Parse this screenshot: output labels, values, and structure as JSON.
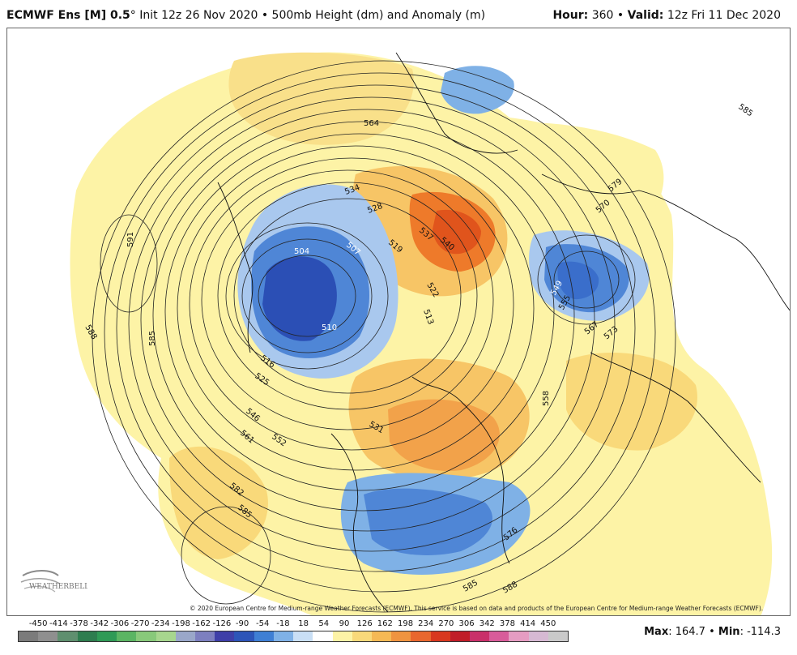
{
  "header": {
    "model": "ECMWF Ens [M] 0.5",
    "degree": "°",
    "init": "Init 12z 26 Nov 2020",
    "bullet": "•",
    "field": "500mb Height (dm) and Anomaly (m)",
    "hour_label": "Hour:",
    "hour_value": "360",
    "valid_label": "Valid:",
    "valid_value": "12z Fri 11 Dec 2020"
  },
  "map": {
    "contour_labels": [
      {
        "text": "564"
      },
      {
        "text": "585"
      },
      {
        "text": "579"
      },
      {
        "text": "570"
      },
      {
        "text": "534"
      },
      {
        "text": "528"
      },
      {
        "text": "537"
      },
      {
        "text": "540"
      },
      {
        "text": "519"
      },
      {
        "text": "522"
      },
      {
        "text": "504"
      },
      {
        "text": "507"
      },
      {
        "text": "510"
      },
      {
        "text": "516"
      },
      {
        "text": "525"
      },
      {
        "text": "546"
      },
      {
        "text": "561"
      },
      {
        "text": "552"
      },
      {
        "text": "582"
      },
      {
        "text": "585"
      },
      {
        "text": "591"
      },
      {
        "text": "588"
      },
      {
        "text": "585"
      },
      {
        "text": "531"
      },
      {
        "text": "558"
      },
      {
        "text": "567"
      },
      {
        "text": "573"
      },
      {
        "text": "549"
      },
      {
        "text": "555"
      },
      {
        "text": "576"
      },
      {
        "text": "585"
      },
      {
        "text": "588"
      },
      {
        "text": "513"
      }
    ],
    "anomaly_colors": {
      "strong_negative": "#2b4fb5",
      "negative": "#4f86d6",
      "weak_negative": "#a9c8ee",
      "weak_positive": "#fdf3a6",
      "positive": "#f7c566",
      "strong_positive": "#ee7a2a",
      "very_strong_positive": "#e0541c"
    }
  },
  "copyright": "© 2020 European Centre for Medium-range Weather Forecasts (ECMWF). This service is based on data and products of the European Centre for Medium-range Weather Forecasts (ECMWF).",
  "colorbar": {
    "labels": [
      "-450",
      "-414",
      "-378",
      "-342",
      "-306",
      "-270",
      "-234",
      "-198",
      "-162",
      "-126",
      "-90",
      "-54",
      "-18",
      "18",
      "54",
      "90",
      "126",
      "162",
      "198",
      "234",
      "270",
      "306",
      "342",
      "378",
      "414",
      "450"
    ],
    "colors": [
      "#7b7b7b",
      "#8f8f8f",
      "#5f8f6f",
      "#2e7d4f",
      "#2f9a56",
      "#5bb563",
      "#88c97a",
      "#a7d68e",
      "#9aa7c9",
      "#7d7fbf",
      "#3f3fa8",
      "#2d55b8",
      "#3f7fd4",
      "#7fb1e6",
      "#c9dff5",
      "#ffffff",
      "#fdf3a6",
      "#f9d97a",
      "#f5b955",
      "#ef9440",
      "#e8672e",
      "#d8381f",
      "#c01d28",
      "#c9306a",
      "#d85c9a",
      "#e59cc2",
      "#d6b9d3",
      "#c9c9c9"
    ]
  },
  "stats": {
    "max_label": "Max",
    "max_value": "164.7",
    "min_label": "Min",
    "min_value": "-114.3",
    "separator": "•"
  },
  "logo": {
    "text": "WEATHERBELL"
  }
}
